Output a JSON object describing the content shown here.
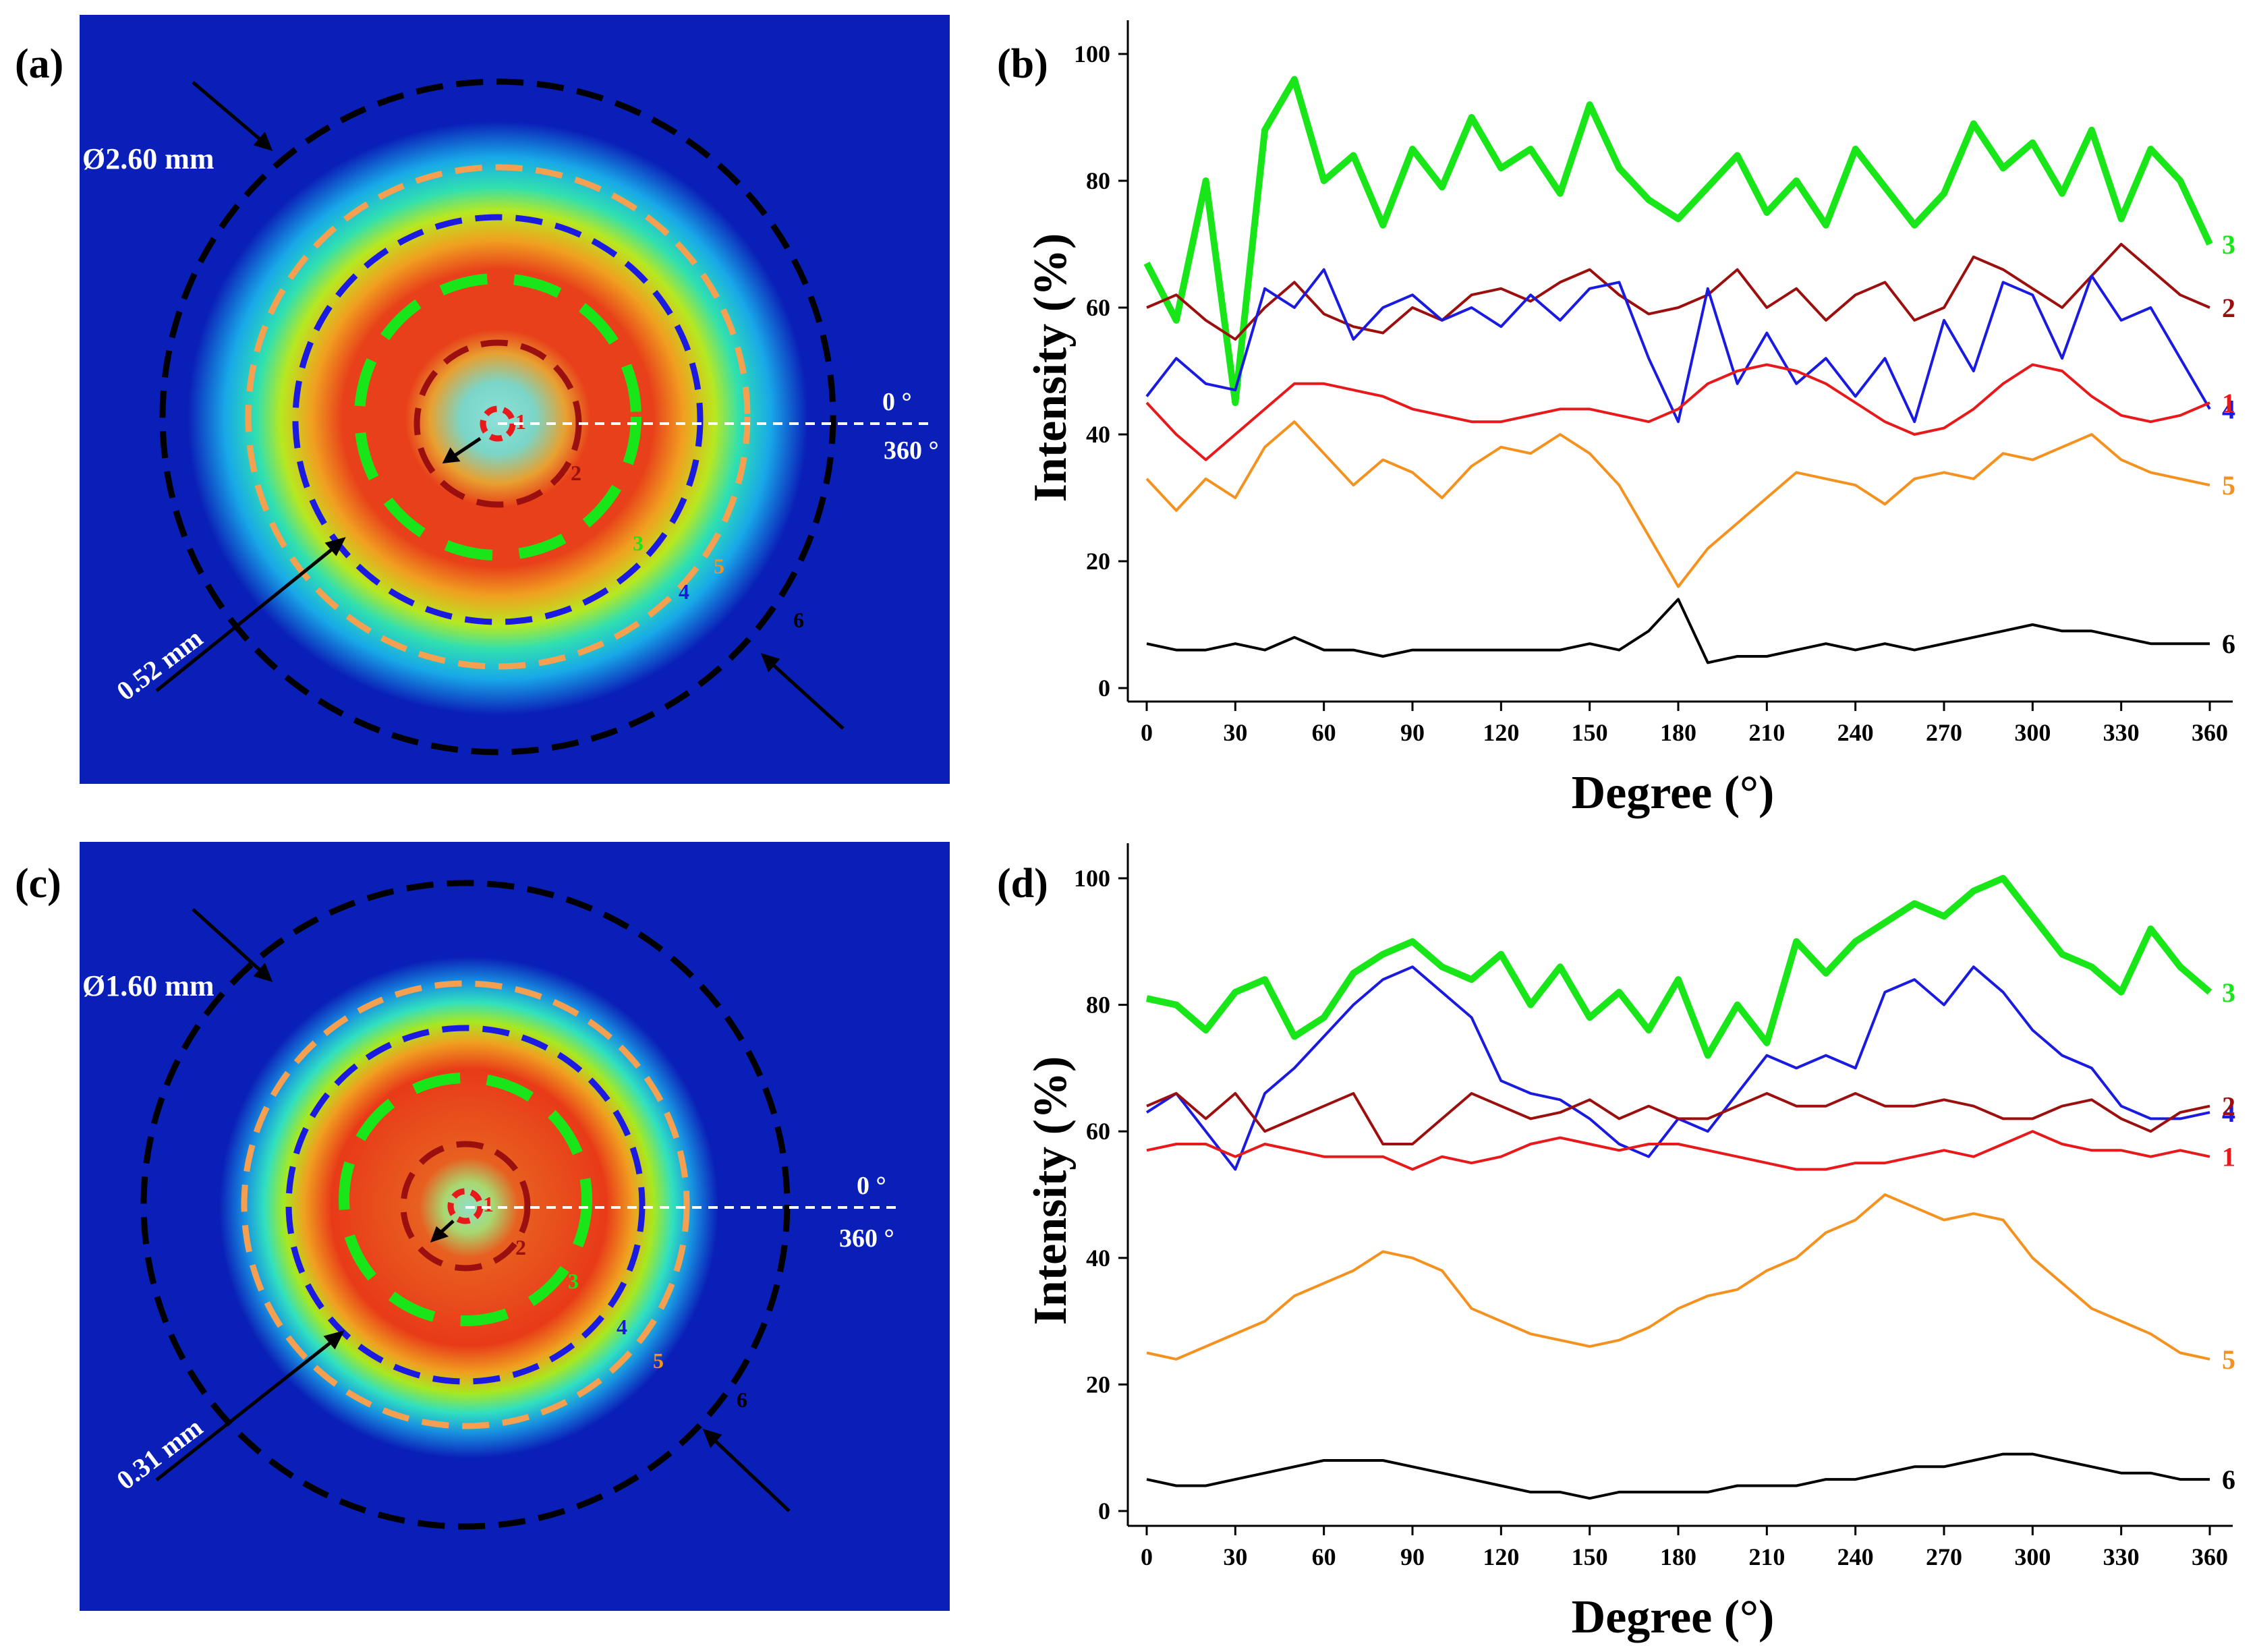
{
  "panels": {
    "a": {
      "label": "(a)",
      "diameter": "Ø2.60 mm",
      "width": "0.52 mm",
      "angle_start": "0 °",
      "angle_end": "360 °"
    },
    "b": {
      "label": "(b)"
    },
    "c": {
      "label": "(c)",
      "diameter": "Ø1.60 mm",
      "width": "0.31 mm",
      "angle_start": "0 °",
      "angle_end": "360 °"
    },
    "d": {
      "label": "(d)"
    }
  },
  "ring_labels": [
    "1",
    "2",
    "3",
    "4",
    "5",
    "6"
  ],
  "colors": {
    "ring1": "#e8191b",
    "ring2": "#9b0f0f",
    "ring3": "#19e619",
    "ring4": "#1a1ae0",
    "ring5": "#f5921f",
    "ring6": "#000000",
    "field_bg": "#0a1fb8",
    "field_hot": "#e8301a"
  },
  "chart_data": [
    {
      "type": "line",
      "panel": "b",
      "xlabel": "Degree (°)",
      "ylabel": "Intensity (%)",
      "xlim": [
        0,
        360
      ],
      "ylim": [
        0,
        100
      ],
      "x_ticks": [
        0,
        30,
        60,
        90,
        120,
        150,
        180,
        210,
        240,
        270,
        300,
        330,
        360
      ],
      "y_ticks": [
        0,
        20,
        40,
        60,
        80,
        100
      ],
      "x": [
        0,
        10,
        20,
        30,
        40,
        50,
        60,
        70,
        80,
        90,
        100,
        110,
        120,
        130,
        140,
        150,
        160,
        170,
        180,
        190,
        200,
        210,
        220,
        230,
        240,
        250,
        260,
        270,
        280,
        290,
        300,
        310,
        320,
        330,
        340,
        350,
        360
      ],
      "series": [
        {
          "name": "3",
          "values": [
            67,
            58,
            80,
            45,
            88,
            96,
            80,
            84,
            73,
            85,
            79,
            90,
            82,
            85,
            78,
            92,
            82,
            77,
            74,
            79,
            84,
            75,
            80,
            73,
            85,
            79,
            73,
            78,
            89,
            82,
            86,
            78,
            88,
            74,
            85,
            80,
            70
          ]
        },
        {
          "name": "2",
          "values": [
            60,
            62,
            58,
            55,
            60,
            64,
            59,
            57,
            56,
            60,
            58,
            62,
            63,
            61,
            64,
            66,
            62,
            59,
            60,
            62,
            66,
            60,
            63,
            58,
            62,
            64,
            58,
            60,
            68,
            66,
            63,
            60,
            65,
            70,
            66,
            62,
            60
          ]
        },
        {
          "name": "4",
          "values": [
            46,
            52,
            48,
            47,
            63,
            60,
            66,
            55,
            60,
            62,
            58,
            60,
            57,
            62,
            58,
            63,
            64,
            52,
            42,
            63,
            48,
            56,
            48,
            52,
            46,
            52,
            42,
            58,
            50,
            64,
            62,
            52,
            65,
            58,
            60,
            52,
            44
          ]
        },
        {
          "name": "1",
          "values": [
            45,
            40,
            36,
            40,
            44,
            48,
            48,
            47,
            46,
            44,
            43,
            42,
            42,
            43,
            44,
            44,
            43,
            42,
            44,
            48,
            50,
            51,
            50,
            48,
            45,
            42,
            40,
            41,
            44,
            48,
            51,
            50,
            46,
            43,
            42,
            43,
            45
          ]
        },
        {
          "name": "5",
          "values": [
            33,
            28,
            33,
            30,
            38,
            42,
            37,
            32,
            36,
            34,
            30,
            35,
            38,
            37,
            40,
            37,
            32,
            24,
            16,
            22,
            26,
            30,
            34,
            33,
            32,
            29,
            33,
            34,
            33,
            37,
            36,
            38,
            40,
            36,
            34,
            33,
            32
          ]
        },
        {
          "name": "6",
          "values": [
            7,
            6,
            6,
            7,
            6,
            8,
            6,
            6,
            5,
            6,
            6,
            6,
            6,
            6,
            6,
            7,
            6,
            9,
            14,
            4,
            5,
            5,
            6,
            7,
            6,
            7,
            6,
            7,
            8,
            9,
            10,
            9,
            9,
            8,
            7,
            7,
            7
          ]
        }
      ]
    },
    {
      "type": "line",
      "panel": "d",
      "xlabel": "Degree (°)",
      "ylabel": "Intensity (%)",
      "xlim": [
        0,
        360
      ],
      "ylim": [
        0,
        100
      ],
      "x_ticks": [
        0,
        30,
        60,
        90,
        120,
        150,
        180,
        210,
        240,
        270,
        300,
        330,
        360
      ],
      "y_ticks": [
        0,
        20,
        40,
        60,
        80,
        100
      ],
      "x": [
        0,
        10,
        20,
        30,
        40,
        50,
        60,
        70,
        80,
        90,
        100,
        110,
        120,
        130,
        140,
        150,
        160,
        170,
        180,
        190,
        200,
        210,
        220,
        230,
        240,
        250,
        260,
        270,
        280,
        290,
        300,
        310,
        320,
        330,
        340,
        350,
        360
      ],
      "series": [
        {
          "name": "3",
          "values": [
            81,
            80,
            76,
            82,
            84,
            75,
            78,
            85,
            88,
            90,
            86,
            84,
            88,
            80,
            86,
            78,
            82,
            76,
            84,
            72,
            80,
            74,
            90,
            85,
            90,
            93,
            96,
            94,
            98,
            100,
            94,
            88,
            86,
            82,
            92,
            86,
            82
          ]
        },
        {
          "name": "4",
          "values": [
            63,
            66,
            60,
            54,
            66,
            70,
            75,
            80,
            84,
            86,
            82,
            78,
            68,
            66,
            65,
            62,
            58,
            56,
            62,
            60,
            66,
            72,
            70,
            72,
            70,
            82,
            84,
            80,
            86,
            82,
            76,
            72,
            70,
            64,
            62,
            62,
            63
          ]
        },
        {
          "name": "2",
          "values": [
            64,
            66,
            62,
            66,
            60,
            62,
            64,
            66,
            58,
            58,
            62,
            66,
            64,
            62,
            63,
            65,
            62,
            64,
            62,
            62,
            64,
            66,
            64,
            64,
            66,
            64,
            64,
            65,
            64,
            62,
            62,
            64,
            65,
            62,
            60,
            63,
            64
          ]
        },
        {
          "name": "1",
          "values": [
            57,
            58,
            58,
            56,
            58,
            57,
            56,
            56,
            56,
            54,
            56,
            55,
            56,
            58,
            59,
            58,
            57,
            58,
            58,
            57,
            56,
            55,
            54,
            54,
            55,
            55,
            56,
            57,
            56,
            58,
            60,
            58,
            57,
            57,
            56,
            57,
            56
          ]
        },
        {
          "name": "5",
          "values": [
            25,
            24,
            26,
            28,
            30,
            34,
            36,
            38,
            41,
            40,
            38,
            32,
            30,
            28,
            27,
            26,
            27,
            29,
            32,
            34,
            35,
            38,
            40,
            44,
            46,
            50,
            48,
            46,
            47,
            46,
            40,
            36,
            32,
            30,
            28,
            25,
            24
          ]
        },
        {
          "name": "6",
          "values": [
            5,
            4,
            4,
            5,
            6,
            7,
            8,
            8,
            8,
            7,
            6,
            5,
            4,
            3,
            3,
            2,
            3,
            3,
            3,
            3,
            4,
            4,
            4,
            5,
            5,
            6,
            7,
            7,
            8,
            9,
            9,
            8,
            7,
            6,
            6,
            5,
            5
          ]
        }
      ]
    }
  ]
}
